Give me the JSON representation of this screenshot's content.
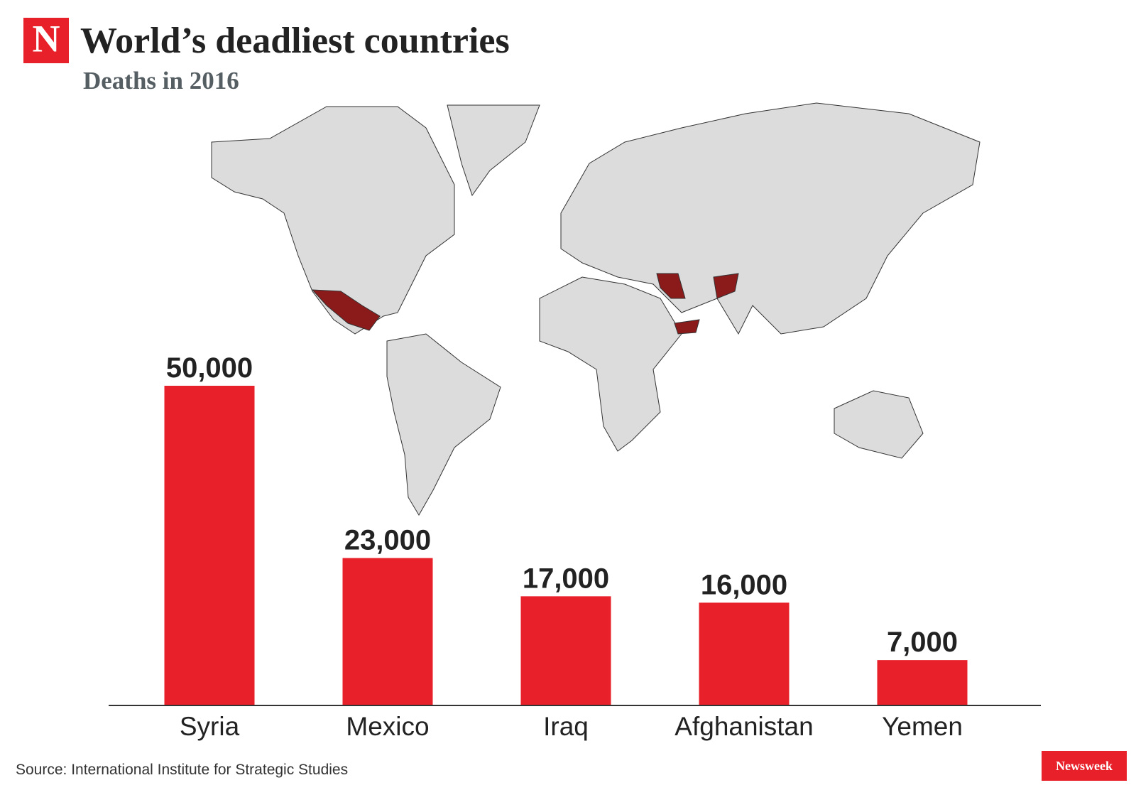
{
  "chart_data": {
    "type": "bar",
    "logo": "N",
    "title": "World’s deadliest countries",
    "subtitle": "Deaths in 2016",
    "categories": [
      "Syria",
      "Mexico",
      "Iraq",
      "Afghanistan",
      "Yemen"
    ],
    "values": [
      50000,
      23000,
      17000,
      16000,
      7000
    ],
    "value_labels": [
      "50,000",
      "23,000",
      "17,000",
      "16,000",
      "7,000"
    ],
    "color": "#e8202a",
    "ylim": [
      0,
      50000
    ],
    "source": "Source: International Institute for Strategic Studies",
    "brand": "Newsweek"
  }
}
